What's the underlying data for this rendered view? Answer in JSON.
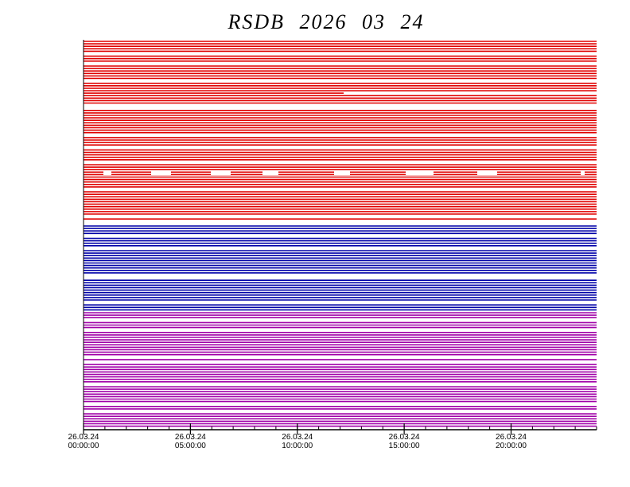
{
  "chart_data": {
    "type": "timeline",
    "title": "RSDB 2026 03 24",
    "xlim": [
      0,
      24
    ],
    "xticks": [
      {
        "value": 0,
        "label": "26.03.24 00:00:00"
      },
      {
        "value": 5,
        "label": "26.03.24 05:00:00"
      },
      {
        "value": 10,
        "label": "26.03.24 10:00:00"
      },
      {
        "value": 15,
        "label": "26.03.24 15:00:00"
      },
      {
        "value": 20,
        "label": "26.03.24 20:00:00"
      }
    ]
  }
}
